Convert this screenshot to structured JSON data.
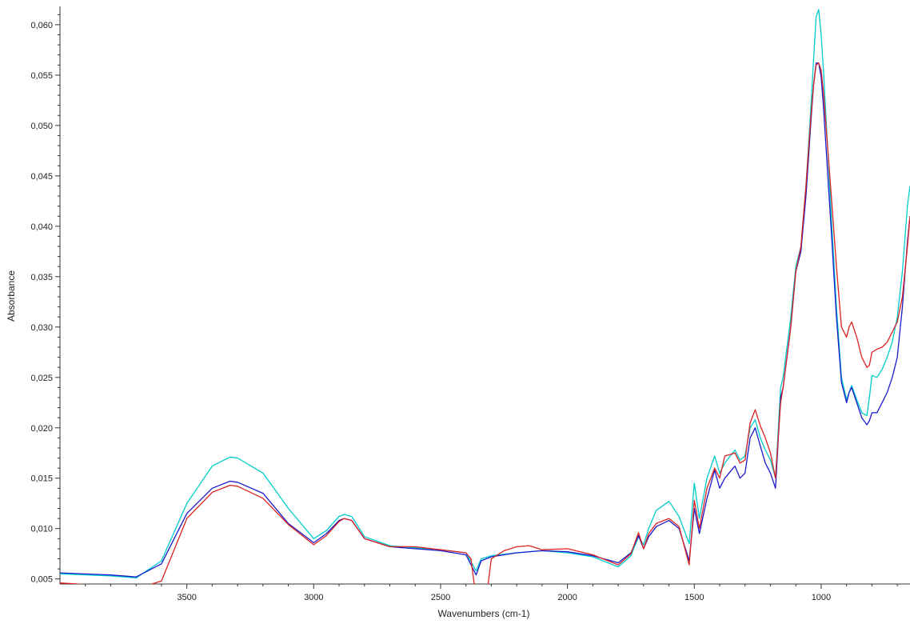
{
  "chart_data": {
    "type": "line",
    "title": "",
    "xlabel": "Wavenumbers (cm-1)",
    "ylabel": "Absorbance",
    "xlim": [
      4000,
      650
    ],
    "ylim": [
      0.0045,
      0.0615
    ],
    "x_reversed": true,
    "grid": false,
    "legend": "none",
    "x_ticks": [
      3500,
      3000,
      2500,
      2000,
      1500,
      1000
    ],
    "x_tick_labels": [
      "3500",
      "3000",
      "2500",
      "2000",
      "1500",
      "1000"
    ],
    "y_ticks": [
      0.005,
      0.01,
      0.015,
      0.02,
      0.025,
      0.03,
      0.035,
      0.04,
      0.045,
      0.05,
      0.055,
      0.06
    ],
    "y_tick_labels": [
      "0,005",
      "0,010",
      "0,015",
      "0,020",
      "0,025",
      "0,030",
      "0,035",
      "0,040",
      "0,045",
      "0,050",
      "0,055",
      "0,060"
    ],
    "series": [
      {
        "color": "#00cccc",
        "x": [
          4000,
          3800,
          3700,
          3600,
          3500,
          3400,
          3330,
          3300,
          3200,
          3100,
          3000,
          2950,
          2900,
          2880,
          2850,
          2800,
          2700,
          2600,
          2500,
          2400,
          2360,
          2340,
          2300,
          2200,
          2100,
          2000,
          1900,
          1800,
          1750,
          1720,
          1700,
          1680,
          1650,
          1600,
          1560,
          1520,
          1500,
          1480,
          1450,
          1420,
          1400,
          1380,
          1340,
          1320,
          1300,
          1280,
          1260,
          1240,
          1220,
          1200,
          1180,
          1160,
          1150,
          1120,
          1100,
          1080,
          1060,
          1040,
          1030,
          1020,
          1010,
          1000,
          990,
          960,
          940,
          920,
          900,
          890,
          880,
          860,
          840,
          820,
          810,
          800,
          780,
          760,
          740,
          720,
          700,
          680,
          660,
          650
        ],
        "values": [
          0.0055,
          0.0053,
          0.0051,
          0.0068,
          0.0125,
          0.0162,
          0.0171,
          0.017,
          0.0155,
          0.012,
          0.009,
          0.0098,
          0.0112,
          0.0114,
          0.0112,
          0.0092,
          0.0083,
          0.0081,
          0.0079,
          0.0076,
          0.0058,
          0.007,
          0.0073,
          0.0076,
          0.0078,
          0.0076,
          0.0072,
          0.0062,
          0.0073,
          0.0092,
          0.0084,
          0.01,
          0.0118,
          0.0127,
          0.0112,
          0.0085,
          0.0145,
          0.011,
          0.015,
          0.0172,
          0.0155,
          0.0165,
          0.0178,
          0.0168,
          0.0172,
          0.02,
          0.0208,
          0.019,
          0.0178,
          0.0168,
          0.015,
          0.024,
          0.025,
          0.031,
          0.036,
          0.038,
          0.044,
          0.052,
          0.0565,
          0.0608,
          0.0615,
          0.059,
          0.055,
          0.041,
          0.032,
          0.025,
          0.0228,
          0.0235,
          0.0242,
          0.0228,
          0.0215,
          0.0212,
          0.023,
          0.0252,
          0.025,
          0.0258,
          0.027,
          0.0285,
          0.031,
          0.0355,
          0.042,
          0.044
        ]
      },
      {
        "color": "#1a1acc",
        "x": [
          4000,
          3800,
          3700,
          3600,
          3500,
          3400,
          3330,
          3300,
          3200,
          3100,
          3000,
          2950,
          2900,
          2880,
          2850,
          2800,
          2700,
          2600,
          2500,
          2400,
          2360,
          2340,
          2300,
          2200,
          2100,
          2000,
          1900,
          1800,
          1750,
          1720,
          1700,
          1680,
          1650,
          1600,
          1560,
          1520,
          1500,
          1480,
          1450,
          1420,
          1400,
          1380,
          1340,
          1320,
          1300,
          1280,
          1260,
          1240,
          1220,
          1200,
          1180,
          1160,
          1150,
          1120,
          1100,
          1080,
          1060,
          1040,
          1030,
          1020,
          1010,
          1000,
          990,
          960,
          940,
          920,
          900,
          890,
          880,
          860,
          840,
          820,
          810,
          800,
          780,
          760,
          740,
          720,
          700,
          680,
          660,
          650
        ],
        "values": [
          0.0056,
          0.0054,
          0.0052,
          0.0065,
          0.0115,
          0.014,
          0.0147,
          0.0146,
          0.0135,
          0.0105,
          0.0086,
          0.0095,
          0.0108,
          0.011,
          0.0108,
          0.009,
          0.0082,
          0.008,
          0.0078,
          0.0074,
          0.0054,
          0.0068,
          0.0072,
          0.0076,
          0.0078,
          0.0077,
          0.0073,
          0.0066,
          0.0076,
          0.0093,
          0.008,
          0.0092,
          0.0102,
          0.0108,
          0.01,
          0.0068,
          0.012,
          0.0095,
          0.013,
          0.0158,
          0.014,
          0.015,
          0.0162,
          0.015,
          0.0155,
          0.019,
          0.02,
          0.0182,
          0.0165,
          0.0155,
          0.014,
          0.023,
          0.024,
          0.03,
          0.0355,
          0.0375,
          0.043,
          0.0505,
          0.054,
          0.0562,
          0.0562,
          0.0548,
          0.0515,
          0.0395,
          0.031,
          0.0245,
          0.0225,
          0.0235,
          0.024,
          0.0225,
          0.021,
          0.0203,
          0.0207,
          0.0215,
          0.0215,
          0.0225,
          0.0235,
          0.025,
          0.027,
          0.032,
          0.0385,
          0.041
        ]
      },
      {
        "color": "#dd2222",
        "x": [
          4000,
          3800,
          3700,
          3600,
          3500,
          3400,
          3330,
          3300,
          3200,
          3100,
          3000,
          2950,
          2900,
          2880,
          2850,
          2800,
          2700,
          2600,
          2500,
          2400,
          2380,
          2360,
          2350,
          2320,
          2300,
          2250,
          2200,
          2150,
          2100,
          2000,
          1900,
          1800,
          1750,
          1720,
          1700,
          1680,
          1650,
          1600,
          1560,
          1520,
          1500,
          1480,
          1450,
          1420,
          1400,
          1380,
          1340,
          1320,
          1300,
          1280,
          1260,
          1240,
          1220,
          1200,
          1180,
          1160,
          1150,
          1120,
          1100,
          1080,
          1060,
          1040,
          1030,
          1020,
          1010,
          1000,
          990,
          960,
          940,
          920,
          900,
          890,
          880,
          860,
          840,
          820,
          810,
          800,
          780,
          760,
          740,
          720,
          700,
          680,
          660,
          650
        ],
        "values": [
          0.0046,
          0.0043,
          0.004,
          0.0048,
          0.011,
          0.0136,
          0.0143,
          0.0142,
          0.013,
          0.0104,
          0.0084,
          0.0093,
          0.0107,
          0.011,
          0.0108,
          0.009,
          0.0082,
          0.0082,
          0.0079,
          0.0076,
          0.007,
          0.003,
          0.002,
          0.003,
          0.007,
          0.0078,
          0.0082,
          0.0083,
          0.0079,
          0.008,
          0.0074,
          0.0064,
          0.0075,
          0.0096,
          0.008,
          0.0095,
          0.0105,
          0.011,
          0.0102,
          0.0064,
          0.0128,
          0.01,
          0.014,
          0.016,
          0.015,
          0.0172,
          0.0175,
          0.0165,
          0.0168,
          0.0205,
          0.0218,
          0.0202,
          0.019,
          0.0175,
          0.015,
          0.0225,
          0.024,
          0.03,
          0.0355,
          0.038,
          0.044,
          0.051,
          0.054,
          0.056,
          0.0562,
          0.0555,
          0.053,
          0.043,
          0.036,
          0.03,
          0.029,
          0.03,
          0.0305,
          0.029,
          0.027,
          0.026,
          0.0262,
          0.0275,
          0.0278,
          0.028,
          0.0285,
          0.0295,
          0.0305,
          0.033,
          0.038,
          0.041
        ]
      }
    ]
  }
}
